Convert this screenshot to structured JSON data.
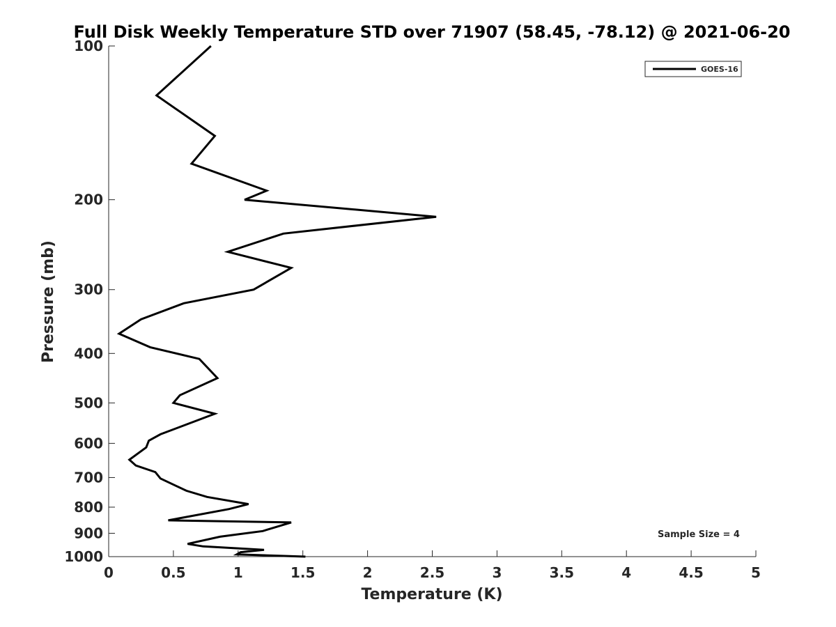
{
  "chart_data": {
    "type": "line",
    "title": "Full Disk Weekly Temperature STD over 71907 (58.45, -78.12) @ 2021-06-20",
    "xlabel": "Temperature (K)",
    "ylabel": "Pressure (mb)",
    "xlim": [
      0,
      5
    ],
    "ylim": [
      100,
      1000
    ],
    "y_scale": "log",
    "y_reversed": true,
    "grid": false,
    "legend_position": "top-right",
    "x_ticks": [
      "0",
      "0.5",
      "1",
      "1.5",
      "2",
      "2.5",
      "3",
      "3.5",
      "4",
      "4.5",
      "5"
    ],
    "y_ticks": [
      "100",
      "200",
      "300",
      "400",
      "500",
      "600",
      "700",
      "800",
      "900",
      "1000"
    ],
    "annotation": "Sample Size = 4",
    "series": [
      {
        "name": "GOES-16",
        "color": "#000000",
        "points": [
          [
            0.79,
            100
          ],
          [
            0.37,
            125
          ],
          [
            0.82,
            150
          ],
          [
            0.64,
            170
          ],
          [
            1.22,
            192
          ],
          [
            1.05,
            200
          ],
          [
            2.53,
            216
          ],
          [
            1.35,
            233
          ],
          [
            0.92,
            253
          ],
          [
            1.41,
            272
          ],
          [
            1.12,
            300
          ],
          [
            0.58,
            319
          ],
          [
            0.25,
            343
          ],
          [
            0.08,
            366
          ],
          [
            0.32,
            389
          ],
          [
            0.7,
            410
          ],
          [
            0.84,
            447
          ],
          [
            0.55,
            483
          ],
          [
            0.5,
            500
          ],
          [
            0.82,
            525
          ],
          [
            0.4,
            576
          ],
          [
            0.31,
            593
          ],
          [
            0.29,
            611
          ],
          [
            0.16,
            646
          ],
          [
            0.21,
            663
          ],
          [
            0.36,
            683
          ],
          [
            0.4,
            703
          ],
          [
            0.6,
            743
          ],
          [
            0.76,
            764
          ],
          [
            1.08,
            789
          ],
          [
            0.93,
            807
          ],
          [
            0.46,
            849
          ],
          [
            1.41,
            857
          ],
          [
            1.19,
            891
          ],
          [
            0.86,
            914
          ],
          [
            0.61,
            944
          ],
          [
            0.73,
            955
          ],
          [
            1.2,
            970
          ],
          [
            1.02,
            980
          ],
          [
            0.99,
            990
          ],
          [
            1.52,
            1000
          ]
        ]
      }
    ]
  }
}
